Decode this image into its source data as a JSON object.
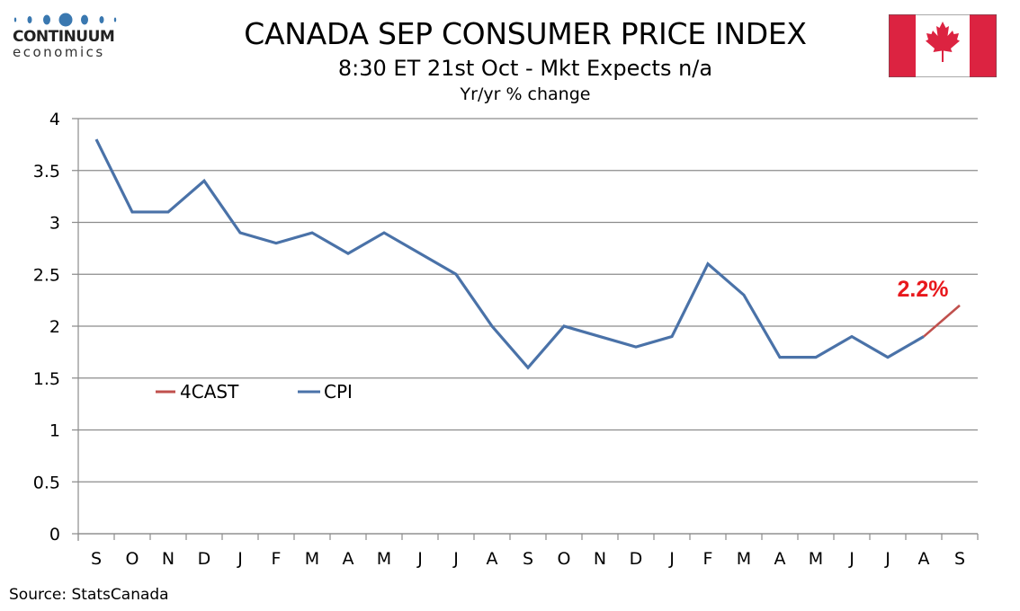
{
  "logo": {
    "line1": "CONTINUUM",
    "line2": "economics",
    "dot_color": "#3a78b0"
  },
  "header": {
    "title": "CANADA SEP CONSUMER PRICE INDEX",
    "subtitle": "8:30 ET 21st Oct - Mkt Expects n/a",
    "units": "Yr/yr % change"
  },
  "flag": {
    "icon": "canada-flag-icon",
    "red": "#dc2341"
  },
  "footer": {
    "source": "Source: StatsCanada"
  },
  "chart_data": {
    "type": "line",
    "title": "CANADA SEP CONSUMER PRICE INDEX",
    "subtitle": "8:30 ET 21st Oct - Mkt Expects n/a",
    "ylabel": "Yr/yr % change",
    "xlabel": "",
    "categories": [
      "S",
      "O",
      "N",
      "D",
      "J",
      "F",
      "M",
      "A",
      "M",
      "J",
      "J",
      "A",
      "S",
      "O",
      "N",
      "D",
      "J",
      "F",
      "M",
      "A",
      "M",
      "J",
      "J",
      "A",
      "S"
    ],
    "ylim": [
      0,
      4
    ],
    "yticks": [
      0,
      0.5,
      1,
      1.5,
      2,
      2.5,
      3,
      3.5,
      4
    ],
    "ytick_labels": [
      "0",
      "0.5",
      "1",
      "1.5",
      "2",
      "2.5",
      "3",
      "3.5",
      "4"
    ],
    "grid": true,
    "legend_position": "center-left",
    "series": [
      {
        "name": "4CAST",
        "color": "#c0504d",
        "values": [
          null,
          null,
          null,
          null,
          null,
          null,
          null,
          null,
          null,
          null,
          null,
          null,
          null,
          null,
          null,
          null,
          null,
          null,
          null,
          null,
          null,
          null,
          null,
          1.9,
          2.2
        ]
      },
      {
        "name": "CPI",
        "color": "#4a72a8",
        "values": [
          3.8,
          3.1,
          3.1,
          3.4,
          2.9,
          2.8,
          2.9,
          2.7,
          2.9,
          2.7,
          2.5,
          2.0,
          1.6,
          2.0,
          1.9,
          1.8,
          1.9,
          2.6,
          2.3,
          1.7,
          1.7,
          1.9,
          1.7,
          1.9,
          null
        ]
      }
    ],
    "annotations": [
      {
        "text": "2.2%",
        "category_index": 24,
        "value": 2.2,
        "color": "#e8181c"
      }
    ]
  }
}
